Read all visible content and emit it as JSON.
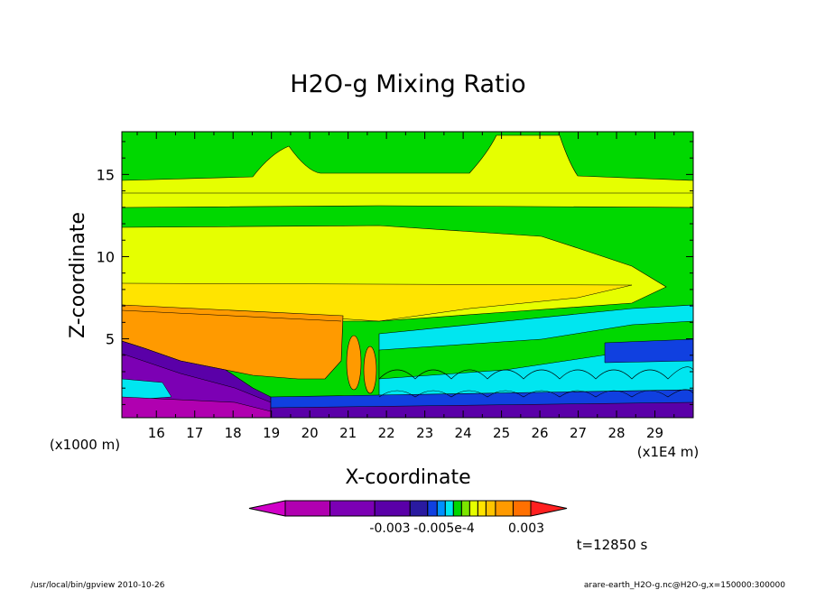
{
  "chart_data": {
    "type": "heatmap",
    "title": "H2O-g Mixing Ratio",
    "xlabel": "X-coordinate",
    "ylabel": "Z-coordinate",
    "x_tick_labels": [
      "16",
      "17",
      "18",
      "19",
      "20",
      "21",
      "22",
      "23",
      "24",
      "25",
      "26",
      "27",
      "28",
      "29"
    ],
    "x_ticks": [
      16,
      17,
      18,
      19,
      20,
      21,
      22,
      23,
      24,
      25,
      26,
      27,
      28,
      29
    ],
    "xlim": [
      15.1,
      30.0
    ],
    "x_unit_label": "(x1E4 m)",
    "y_tick_labels": [
      "5",
      "10",
      "15"
    ],
    "y_ticks": [
      5,
      10,
      15
    ],
    "ylim": [
      0.2,
      17.6
    ],
    "y_unit_label": "(x1000 m)",
    "colorbar": {
      "tick_labels": [
        "-0.003",
        "-0.005e-4",
        "0.003"
      ],
      "colors": [
        "#d100c8",
        "#b000b0",
        "#7c00b4",
        "#5a00a8",
        "#2a1aa0",
        "#1040e0",
        "#0090ff",
        "#00e6f0",
        "#00d800",
        "#7ce600",
        "#e6ff00",
        "#ffe400",
        "#ffc400",
        "#ff9a00",
        "#ff7000",
        "#ff2020"
      ]
    },
    "time_label": "t=12850 s",
    "footer_left": "/usr/local/bin/gpview  2010-10-26",
    "footer_right": "arare-earth_H2O-g.nc@H2O-g,x=150000:300000"
  }
}
